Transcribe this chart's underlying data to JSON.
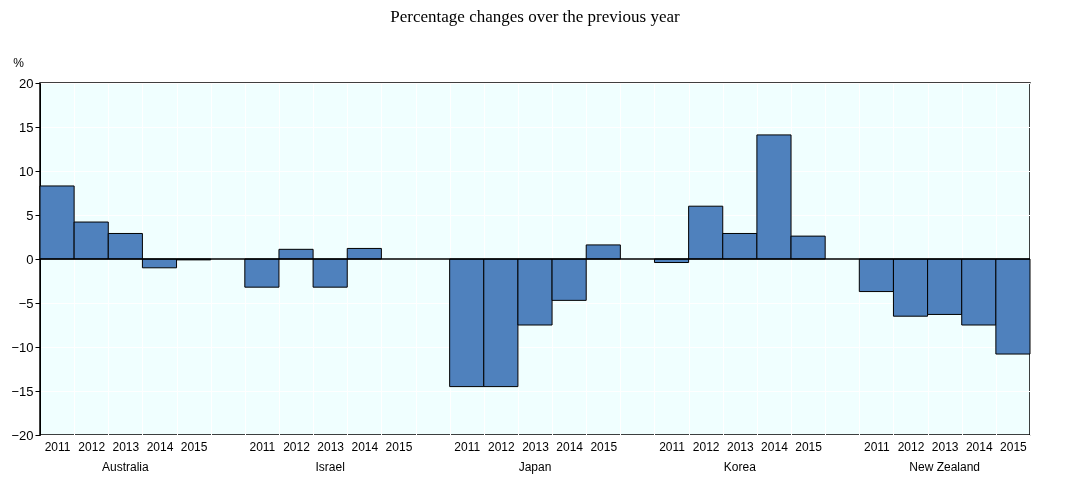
{
  "chart_data": {
    "type": "bar",
    "title": "Percentage changes over the previous year",
    "ylabel": "%",
    "categories": [
      "2011",
      "2012",
      "2013",
      "2014",
      "2015",
      null,
      "2011",
      "2012",
      "2013",
      "2014",
      "2015",
      null,
      "2011",
      "2012",
      "2013",
      "2014",
      "2015",
      null,
      "2011",
      "2012",
      "2013",
      "2014",
      "2015",
      null,
      "2011",
      "2012",
      "2013",
      "2014",
      "2015"
    ],
    "series": [
      {
        "color": "#4f81bd",
        "values": [
          8.3,
          4.2,
          2.9,
          -1.0,
          -0.1,
          null,
          -3.2,
          1.1,
          -3.2,
          1.2,
          null,
          null,
          -14.5,
          -14.5,
          -7.5,
          -4.7,
          1.6,
          null,
          -0.4,
          6.0,
          2.9,
          14.1,
          2.6,
          null,
          -3.7,
          -6.5,
          -6.3,
          -7.5,
          -10.8
        ]
      }
    ],
    "annotations": [
      "Australia",
      "Israel",
      "Japan",
      "Korea",
      "New Zealand"
    ],
    "ylim": [
      -20,
      20
    ],
    "yticks": [
      -20,
      -15,
      -10,
      -5,
      0,
      5,
      10,
      15,
      20
    ],
    "grid": true
  }
}
